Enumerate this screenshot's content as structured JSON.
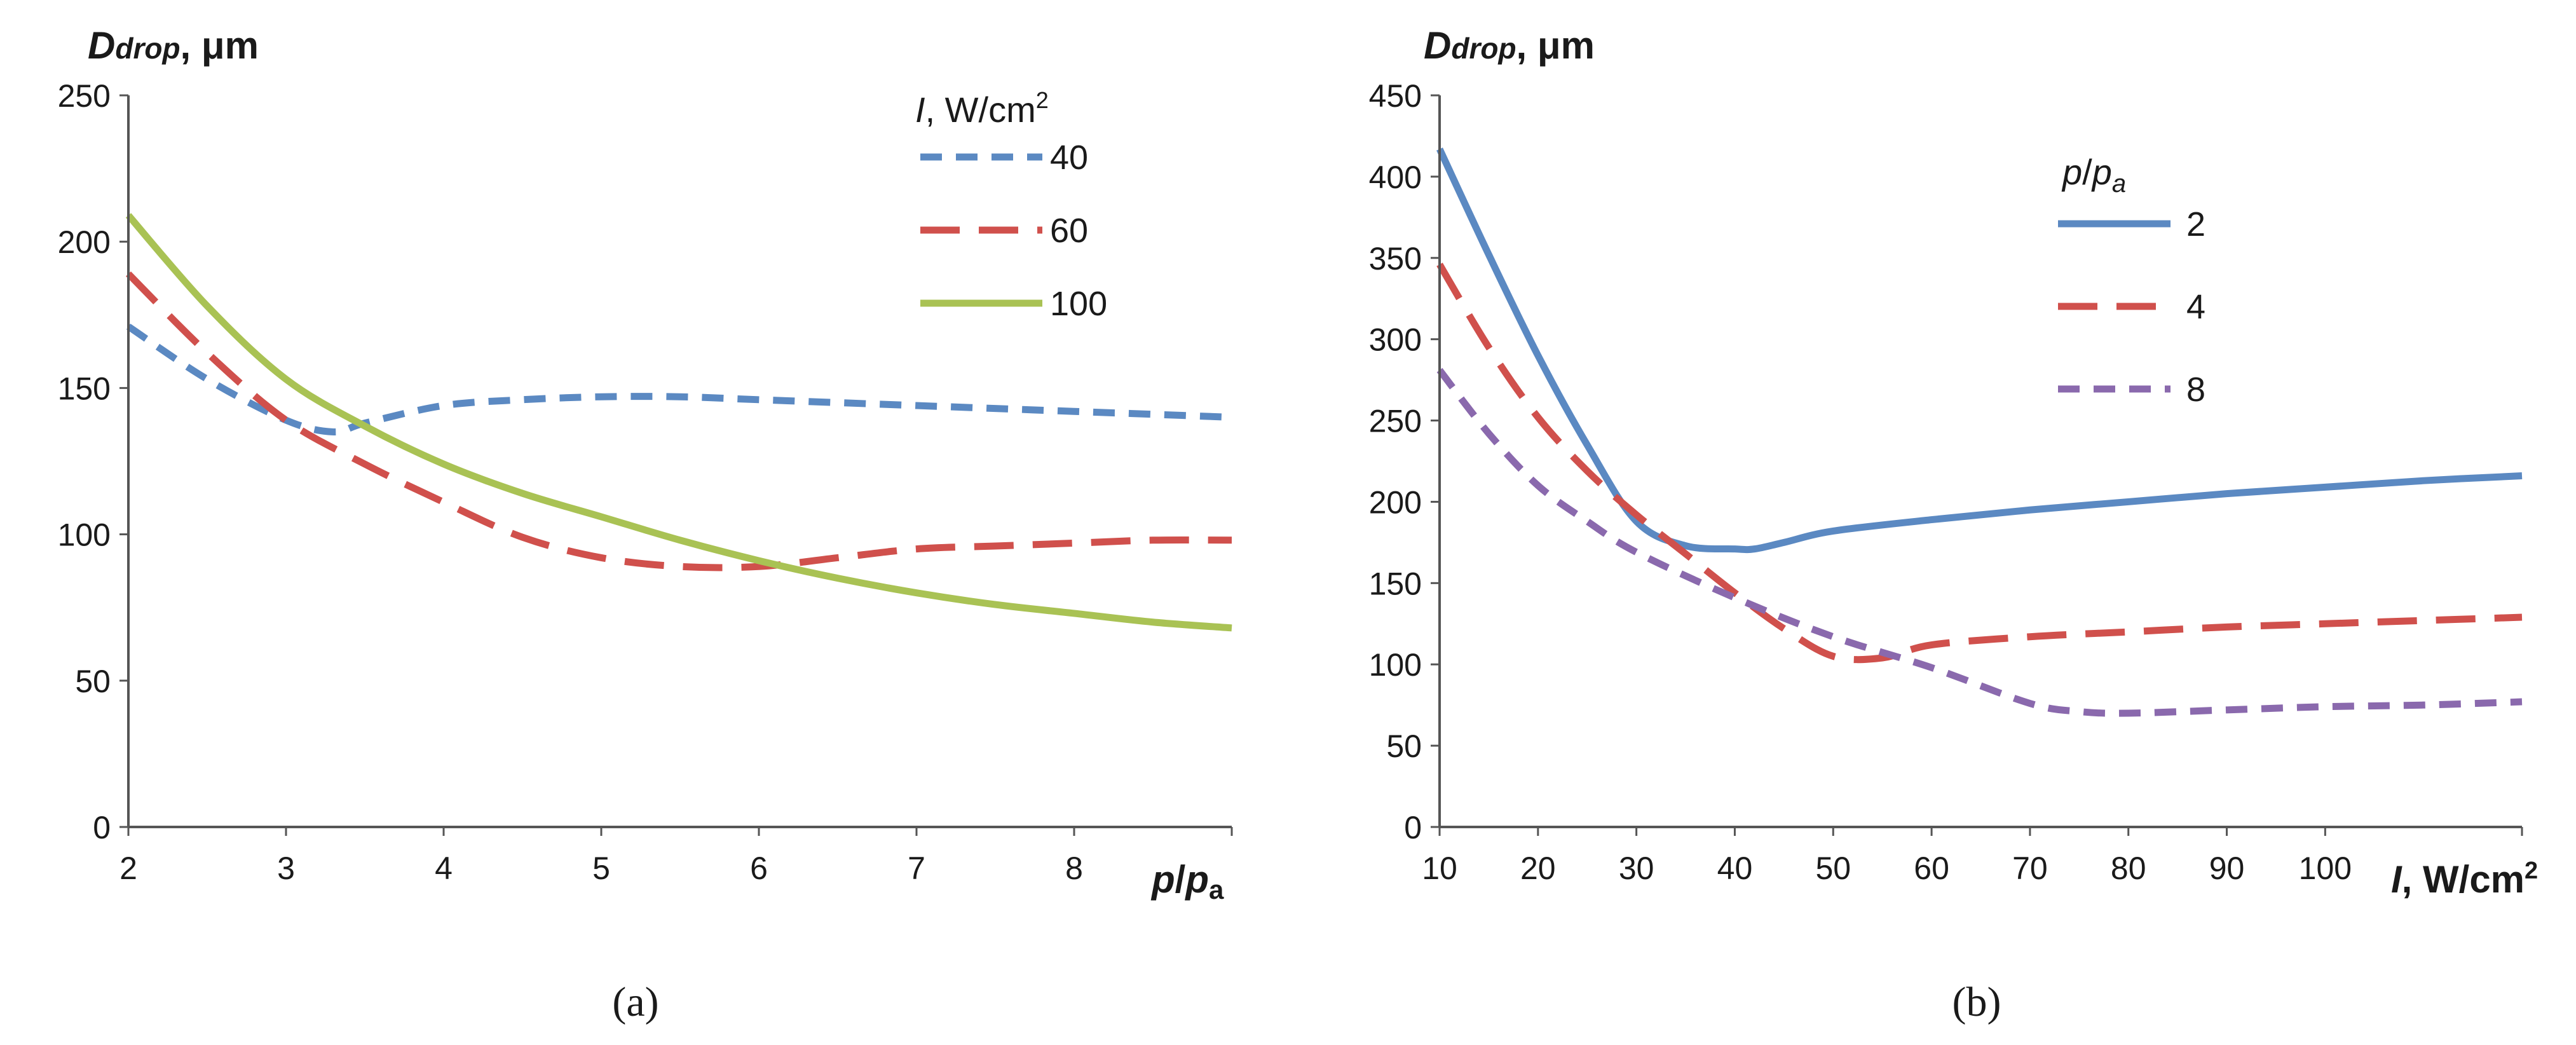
{
  "chart_data": [
    {
      "id": "a",
      "type": "line",
      "panel_label": "(a)",
      "ylabel": "Ddrop, μm",
      "xlabel": "p/pa",
      "xlim": [
        2,
        9
      ],
      "ylim": [
        0,
        250
      ],
      "xticks": [
        "2",
        "3",
        "4",
        "5",
        "6",
        "7",
        "8"
      ],
      "yticks": [
        "0",
        "50",
        "100",
        "150",
        "200",
        "250"
      ],
      "legend_title": "I, W/cm2",
      "legend_position": "top-right",
      "series": [
        {
          "name": "40",
          "color": "#5b89c2",
          "style": "short-dash",
          "x": [
            2,
            2.5,
            3,
            3.3,
            3.5,
            4,
            4.5,
            5,
            5.5,
            6,
            6.5,
            7,
            7.5,
            8,
            8.5,
            9
          ],
          "y": [
            171,
            153,
            139,
            135,
            138,
            144,
            146,
            147,
            147,
            146,
            145,
            144,
            143,
            142,
            141,
            140
          ]
        },
        {
          "name": "60",
          "color": "#d0504c",
          "style": "long-dash",
          "x": [
            2,
            2.5,
            3,
            3.5,
            4,
            4.5,
            5,
            5.5,
            6,
            6.5,
            7,
            7.5,
            8,
            8.5,
            9
          ],
          "y": [
            189,
            162,
            139,
            124,
            111,
            99,
            92,
            89,
            89,
            92,
            95,
            96,
            97,
            98,
            98
          ]
        },
        {
          "name": "100",
          "color": "#a9c254",
          "style": "solid",
          "x": [
            2,
            2.5,
            3,
            3.5,
            4,
            4.5,
            5,
            5.5,
            6,
            6.5,
            7,
            7.5,
            8,
            8.5,
            9
          ],
          "y": [
            209,
            178,
            153,
            137,
            124,
            114,
            106,
            98,
            91,
            85,
            80,
            76,
            73,
            70,
            68
          ]
        }
      ]
    },
    {
      "id": "b",
      "type": "line",
      "panel_label": "(b)",
      "ylabel": "Ddrop, μm",
      "xlabel": "I, W/cm2",
      "xlim": [
        10,
        120
      ],
      "ylim": [
        0,
        450
      ],
      "xticks": [
        "10",
        "20",
        "30",
        "40",
        "50",
        "60",
        "70",
        "80",
        "90",
        "100"
      ],
      "yticks": [
        "0",
        "50",
        "100",
        "150",
        "200",
        "250",
        "300",
        "350",
        "400",
        "450"
      ],
      "legend_title": "p/pa",
      "legend_position": "top-center",
      "series": [
        {
          "name": "2",
          "color": "#5b89c2",
          "style": "solid",
          "x": [
            10,
            15,
            20,
            25,
            30,
            35,
            40,
            42,
            45,
            50,
            60,
            70,
            80,
            90,
            100,
            110,
            120
          ],
          "y": [
            417,
            352,
            290,
            235,
            188,
            173,
            171,
            171,
            175,
            182,
            189,
            195,
            200,
            205,
            209,
            213,
            216
          ]
        },
        {
          "name": "4",
          "color": "#d0504c",
          "style": "long-dash",
          "x": [
            10,
            15,
            20,
            25,
            30,
            35,
            40,
            45,
            50,
            55,
            60,
            70,
            80,
            90,
            100,
            110,
            120
          ],
          "y": [
            346,
            295,
            252,
            219,
            192,
            168,
            144,
            122,
            105,
            104,
            112,
            117,
            120,
            123,
            125,
            127,
            129
          ]
        },
        {
          "name": "8",
          "color": "#8a69ad",
          "style": "short-dash",
          "x": [
            10,
            15,
            20,
            25,
            30,
            40,
            50,
            60,
            70,
            75,
            80,
            90,
            100,
            110,
            120
          ],
          "y": [
            281,
            242,
            210,
            188,
            169,
            141,
            117,
            98,
            76,
            71,
            70,
            72,
            74,
            75,
            77
          ]
        }
      ]
    }
  ]
}
